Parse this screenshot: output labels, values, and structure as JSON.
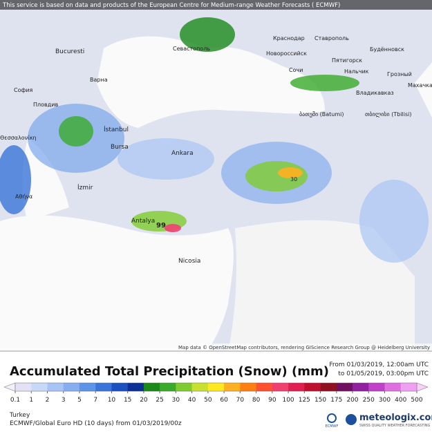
{
  "map": {
    "notice": "This service is based on data and products of the European Centre for Medium-range Weather Forecasts ( ECMWF)",
    "attribution": "Map data © OpenStreetMap contributors, rendering GIScience Research Group @ Heidelberg University",
    "labels": [
      "Bucuresti",
      "София",
      "Пловдив",
      "Варна",
      "Севастополь",
      "Краснодар",
      "Ставрополь",
      "Новороссийск",
      "Будённовск",
      "Пятигорск",
      "Сочи",
      "Нальчик",
      "Грозный",
      "Владикавказ",
      "Махачкала",
      "ბათუმი (Batumi)",
      "თბილისი (Tbilisi)",
      "İstanbul",
      "Bursa",
      "Ankara",
      "İzmir",
      "Αθήνα",
      "Antalya",
      "Nicosia",
      "Θεσσαλονίκη"
    ],
    "max_labels": [
      "99",
      "30"
    ]
  },
  "legend": {
    "title": "Accumulated Total Precipitation (Snow) (mm)",
    "from": "From 01/03/2019, 12:00am UTC",
    "to": "to 01/05/2019, 03:00pm UTC",
    "ticks": [
      0.1,
      1,
      2,
      3,
      5,
      7,
      10,
      15,
      20,
      25,
      30,
      40,
      50,
      60,
      70,
      80,
      90,
      100,
      125,
      150,
      175,
      200,
      250,
      300,
      400,
      500
    ],
    "colors": [
      "#e4e0f6",
      "#c8d8f8",
      "#a8c4f4",
      "#86aef0",
      "#5e94e8",
      "#3a74d8",
      "#1c50c0",
      "#0c3096",
      "#1a8a1a",
      "#3aaa2a",
      "#80cc30",
      "#c8e030",
      "#ffe820",
      "#ffb020",
      "#ff8010",
      "#ff5030",
      "#f04070",
      "#e02050",
      "#c01030",
      "#901020",
      "#701060",
      "#9020a0",
      "#c040c8",
      "#e070e0",
      "#f0a0f0"
    ],
    "left_color": "#f2f0fa",
    "right_color": "#f8d0f8"
  },
  "footer": {
    "region": "Turkey",
    "model": "ECMWF/Global Euro HD (10 days) from 01/03/2019/00z",
    "brand": "meteologix.com",
    "tagline": "SWISS QUALITY WEATHER FORECASTING",
    "logo": "ECMWF"
  }
}
